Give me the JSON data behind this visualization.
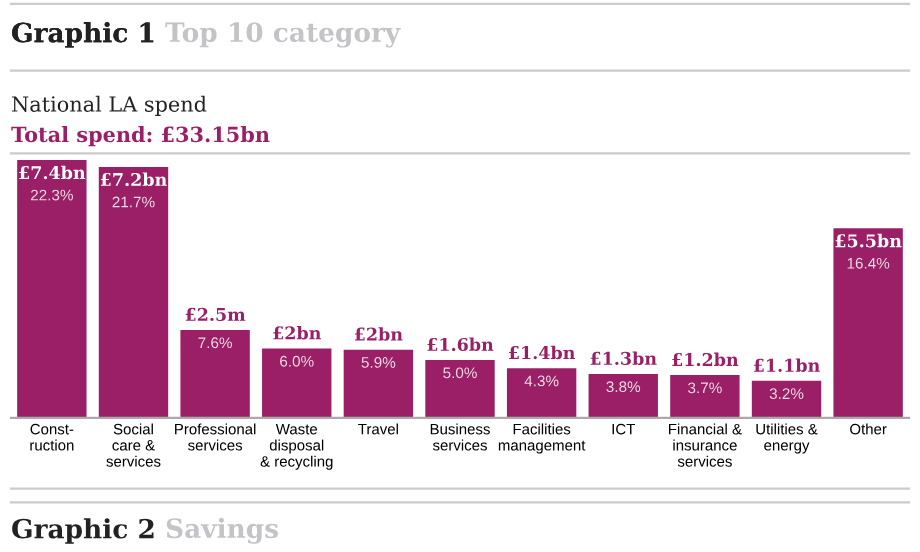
{
  "chart_data": {
    "type": "bar",
    "title": "Graphic 1",
    "subtitle": "Top 10 category",
    "annotations": [
      "National LA spend",
      "Total spend: £33.15bn",
      "Graphic 2",
      "Savings"
    ],
    "categories": [
      "Const-\nruction",
      "Social\ncare &\nservices",
      "Professional\nservices",
      "Waste\ndisposal\n& recycling",
      "Travel",
      "Business\nservices",
      "Facilities\nmanagement",
      "ICT",
      "Financial &\ninsurance\nservices",
      "Utilities &\nenergy",
      "Other"
    ],
    "values": [
      22.3,
      21.7,
      7.6,
      6.0,
      5.9,
      5.0,
      4.3,
      3.8,
      3.7,
      3.2,
      16.4
    ],
    "value_labels": [
      "£7.4bn\n22.3%",
      "£7.2bn\n21.7%",
      "£2.5m\n7.6%",
      "£2bn\n6.0%",
      "£2bn\n5.9%",
      "£1.6bn\n5.0%",
      "£1.4bn\n4.3%",
      "£1.3bn\n3.8%",
      "£1.2bn\n3.7%",
      "£1.1bn\n3.2%",
      "£5.5bn\n16.4%"
    ],
    "color": "#9b1f66",
    "grid": false,
    "legend": false
  }
}
